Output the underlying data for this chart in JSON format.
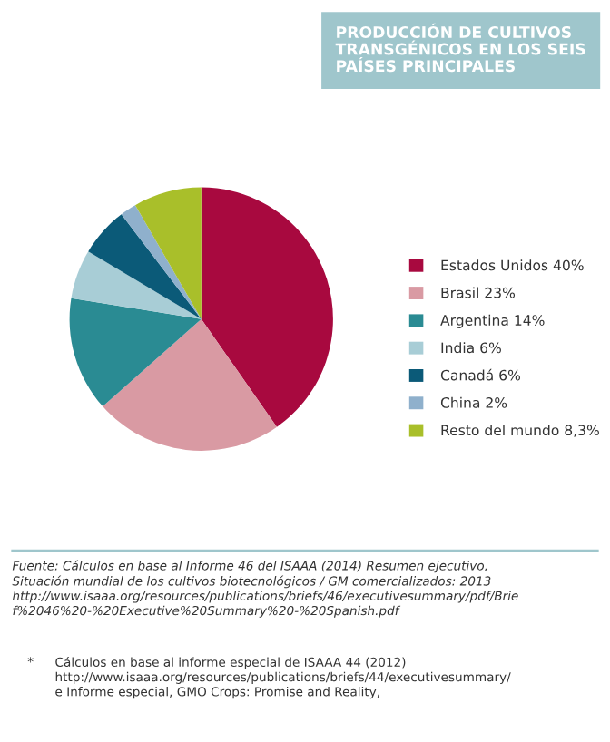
{
  "chart_data": {
    "type": "pie",
    "title": "PRODUCCIÓN DE CULTIVOS\nTRANSGÉNICOS EN LOS SEIS\nPAÍSES PRINCIPALES",
    "categories": [
      "Estados Unidos 40%",
      "Brasil 23%",
      "Argentina 14%",
      "India 6%",
      "Canadá 6%",
      "China 2%",
      "Resto del mundo 8,3%"
    ],
    "values": [
      40,
      23,
      14,
      6,
      6,
      2,
      8.3
    ],
    "colors": [
      "#a8093f",
      "#d99aa3",
      "#2a8b93",
      "#a8cdd6",
      "#0b5a78",
      "#8fb0cc",
      "#a9bf2a"
    ],
    "legend": "right",
    "annotations": [
      "Fuente: Cálculos en base al Informe 46 del ISAAA (2014) Resumen ejecutivo,\nSituación mundial de los cultivos biotecnológicos / GM comercializados: 2013\nhttp://www.isaaa.org/resources/publications/briefs/46/executivesummary/pdf/Brie\nf%2046%20-%20Executive%20Summary%20-%20Spanish.pdf",
      "*",
      "Cálculos en base al informe especial de ISAAA 44 (2012)\nhttp://www.isaaa.org/resources/publications/briefs/44/executivesummary/\ne Informe especial, GMO Crops: Promise and Reality,"
    ]
  }
}
